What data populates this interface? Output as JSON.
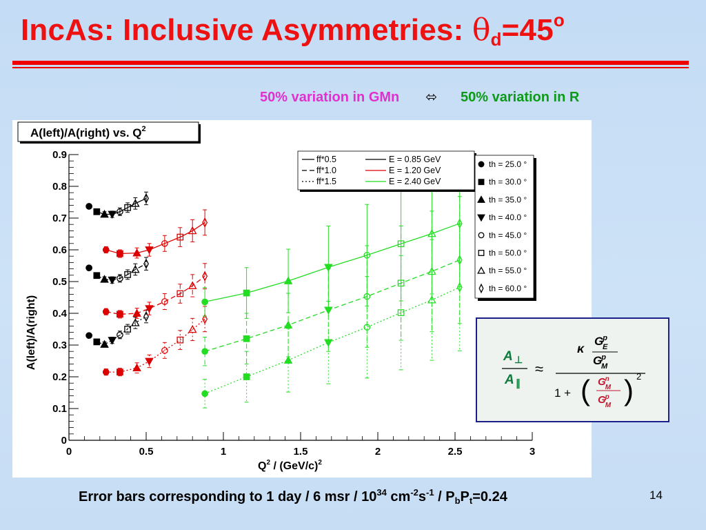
{
  "slide": {
    "title_main": "IncAs: Inclusive Asymmetries: ",
    "title_theta": "θ",
    "title_sub": "d",
    "title_eq": "=45",
    "title_sup": "o",
    "variation_left": "50% variation in GMn",
    "variation_arrow": "⬄",
    "variation_right": "50% variation in R",
    "footer_prefix": "Error bars corresponding to 1 day / 6 msr / 10",
    "footer_exp1": "34",
    "footer_unit": " cm",
    "footer_exp2": "-2",
    "footer_s": "s",
    "footer_exp3": "-1",
    "footer_pol": " / P",
    "footer_sub_b": "b",
    "footer_pt": "P",
    "footer_sub_t": "t",
    "footer_val": "=0.24",
    "page_number": "14"
  },
  "formula": {
    "lhs_num": "A",
    "lhs_num_sub": "⊥",
    "lhs_den": "A",
    "lhs_den_sub": "∥",
    "approx": "≈",
    "kappa": "κ",
    "G": "G",
    "sup_p": "p",
    "sup_n": "n",
    "sub_E": "E",
    "sub_M": "M",
    "one_plus": "1 +",
    "paren_l": "(",
    "paren_r": ")",
    "exp2": "2"
  },
  "chart_data": {
    "type": "scatter",
    "title": "A(left)/A(right) vs. Q",
    "title_sup": "2",
    "xlabel": "Q",
    "xlabel_sup": "2",
    "xlabel_unit": " / (GeV/c)",
    "xlabel_unit_sup": "2",
    "ylabel": "A(left)/A(right)",
    "xlim": [
      0,
      3
    ],
    "ylim": [
      0,
      0.9
    ],
    "xticks": [
      "0",
      "0.5",
      "1",
      "1.5",
      "2",
      "2.5",
      "3"
    ],
    "yticks": [
      "0",
      "0.1",
      "0.2",
      "0.3",
      "0.4",
      "0.5",
      "0.6",
      "0.7",
      "0.8",
      "0.9"
    ],
    "grid": false,
    "legend_ff": [
      {
        "label": "ff*0.5",
        "dash": "solid"
      },
      {
        "label": "ff*1.0",
        "dash": "dashed"
      },
      {
        "label": "ff*1.5",
        "dash": "dotted"
      }
    ],
    "legend_energy": [
      {
        "label": "E = 0.85 GeV",
        "color": "#000000"
      },
      {
        "label": "E = 1.20 GeV",
        "color": "#dd0000"
      },
      {
        "label": "E = 2.40 GeV",
        "color": "#22dd22"
      }
    ],
    "legend_angles": [
      {
        "label": "th = 25.0",
        "marker": "circle-filled"
      },
      {
        "label": "th = 30.0",
        "marker": "square-filled"
      },
      {
        "label": "th = 35.0",
        "marker": "triangle-up-filled"
      },
      {
        "label": "th = 40.0",
        "marker": "triangle-down-filled"
      },
      {
        "label": "th = 45.0",
        "marker": "circle-open"
      },
      {
        "label": "th = 50.0",
        "marker": "square-open"
      },
      {
        "label": "th = 55.0",
        "marker": "triangle-up-open"
      },
      {
        "label": "th = 60.0",
        "marker": "diamond-open"
      }
    ],
    "legend_angle_unit": " °",
    "series": [
      {
        "energy": "0.85",
        "ff": "0.5",
        "color": "#000000",
        "dash": "solid",
        "points": [
          [
            0.13,
            0.737,
            0.0
          ],
          [
            0.18,
            0.72,
            0.005
          ],
          [
            0.23,
            0.712,
            0.008
          ],
          [
            0.28,
            0.712,
            0.01
          ],
          [
            0.33,
            0.72,
            0.012
          ],
          [
            0.38,
            0.733,
            0.015
          ],
          [
            0.43,
            0.746,
            0.018
          ],
          [
            0.5,
            0.762,
            0.02
          ]
        ]
      },
      {
        "energy": "0.85",
        "ff": "1.0",
        "color": "#000000",
        "dash": "dashed",
        "points": [
          [
            0.13,
            0.543,
            0.0
          ],
          [
            0.18,
            0.519,
            0.005
          ],
          [
            0.23,
            0.507,
            0.008
          ],
          [
            0.28,
            0.505,
            0.01
          ],
          [
            0.33,
            0.51,
            0.012
          ],
          [
            0.38,
            0.522,
            0.015
          ],
          [
            0.43,
            0.538,
            0.018
          ],
          [
            0.5,
            0.556,
            0.02
          ]
        ]
      },
      {
        "energy": "0.85",
        "ff": "1.5",
        "color": "#000000",
        "dash": "dotted",
        "points": [
          [
            0.13,
            0.33,
            0.0
          ],
          [
            0.18,
            0.31,
            0.005
          ],
          [
            0.23,
            0.302,
            0.008
          ],
          [
            0.28,
            0.315,
            0.01
          ],
          [
            0.33,
            0.332,
            0.012
          ],
          [
            0.38,
            0.35,
            0.015
          ],
          [
            0.43,
            0.37,
            0.018
          ],
          [
            0.5,
            0.39,
            0.02
          ]
        ]
      },
      {
        "energy": "1.20",
        "ff": "0.5",
        "color": "#dd0000",
        "dash": "solid",
        "points": [
          [
            0.24,
            0.6,
            0.01
          ],
          [
            0.33,
            0.588,
            0.012
          ],
          [
            0.44,
            0.59,
            0.016
          ],
          [
            0.52,
            0.6,
            0.02
          ],
          [
            0.62,
            0.62,
            0.025
          ],
          [
            0.72,
            0.64,
            0.03
          ],
          [
            0.8,
            0.66,
            0.035
          ],
          [
            0.88,
            0.686,
            0.04
          ]
        ]
      },
      {
        "energy": "1.20",
        "ff": "1.0",
        "color": "#dd0000",
        "dash": "dashed",
        "points": [
          [
            0.24,
            0.405,
            0.01
          ],
          [
            0.33,
            0.397,
            0.012
          ],
          [
            0.44,
            0.4,
            0.016
          ],
          [
            0.52,
            0.415,
            0.02
          ],
          [
            0.62,
            0.437,
            0.025
          ],
          [
            0.72,
            0.462,
            0.03
          ],
          [
            0.8,
            0.487,
            0.035
          ],
          [
            0.88,
            0.517,
            0.04
          ]
        ]
      },
      {
        "energy": "1.20",
        "ff": "1.5",
        "color": "#dd0000",
        "dash": "dotted",
        "points": [
          [
            0.24,
            0.215,
            0.01
          ],
          [
            0.33,
            0.215,
            0.012
          ],
          [
            0.44,
            0.228,
            0.016
          ],
          [
            0.52,
            0.249,
            0.02
          ],
          [
            0.62,
            0.283,
            0.025
          ],
          [
            0.72,
            0.316,
            0.03
          ],
          [
            0.8,
            0.349,
            0.035
          ],
          [
            0.88,
            0.382,
            0.04
          ]
        ]
      },
      {
        "energy": "2.40",
        "ff": "0.5",
        "color": "#22dd22",
        "dash": "solid",
        "points": [
          [
            0.88,
            0.436,
            0.045
          ],
          [
            1.15,
            0.464,
            0.08
          ],
          [
            1.42,
            0.502,
            0.1
          ],
          [
            1.68,
            0.545,
            0.13
          ],
          [
            1.93,
            0.583,
            0.16
          ],
          [
            2.15,
            0.619,
            0.18
          ],
          [
            2.35,
            0.651,
            0.19
          ],
          [
            2.53,
            0.683,
            0.2
          ]
        ]
      },
      {
        "energy": "2.40",
        "ff": "1.0",
        "color": "#22dd22",
        "dash": "dashed",
        "points": [
          [
            0.88,
            0.28,
            0.045
          ],
          [
            1.15,
            0.32,
            0.08
          ],
          [
            1.42,
            0.363,
            0.1
          ],
          [
            1.68,
            0.41,
            0.13
          ],
          [
            1.93,
            0.453,
            0.16
          ],
          [
            2.15,
            0.495,
            0.18
          ],
          [
            2.35,
            0.532,
            0.19
          ],
          [
            2.53,
            0.568,
            0.2
          ]
        ]
      },
      {
        "energy": "2.40",
        "ff": "1.5",
        "color": "#22dd22",
        "dash": "dotted",
        "points": [
          [
            0.88,
            0.147,
            0.045
          ],
          [
            1.15,
            0.2,
            0.08
          ],
          [
            1.42,
            0.252,
            0.1
          ],
          [
            1.68,
            0.308,
            0.13
          ],
          [
            1.93,
            0.356,
            0.16
          ],
          [
            2.15,
            0.402,
            0.18
          ],
          [
            2.35,
            0.442,
            0.19
          ],
          [
            2.53,
            0.482,
            0.2
          ]
        ]
      }
    ]
  }
}
